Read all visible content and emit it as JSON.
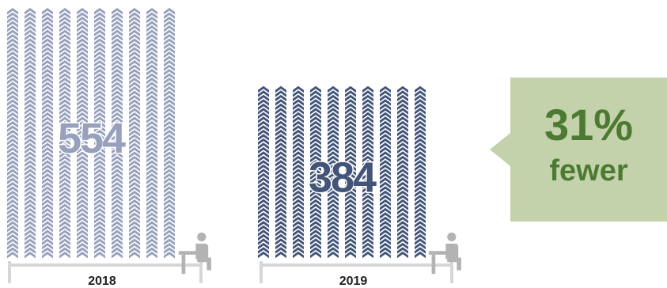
{
  "chart_data": {
    "type": "bar",
    "categories": [
      "2018",
      "2019"
    ],
    "values": [
      554,
      384
    ],
    "series": [
      {
        "values": [
          554,
          384
        ]
      }
    ],
    "value_labels": [
      "554",
      "384"
    ],
    "ylim": [
      0,
      554
    ],
    "colors": {
      "2018": "#97a1bc",
      "2019": "#435479",
      "value_stroke": "#ffffff",
      "base_line": "#d6d6d6",
      "icon": "#b3b3b3"
    },
    "icon": "seated-person-at-desk-icon"
  },
  "callout": {
    "percent": "31%",
    "word": "fewer",
    "bg_color": "#c3d2aa",
    "text_color": "#4d7a32"
  }
}
